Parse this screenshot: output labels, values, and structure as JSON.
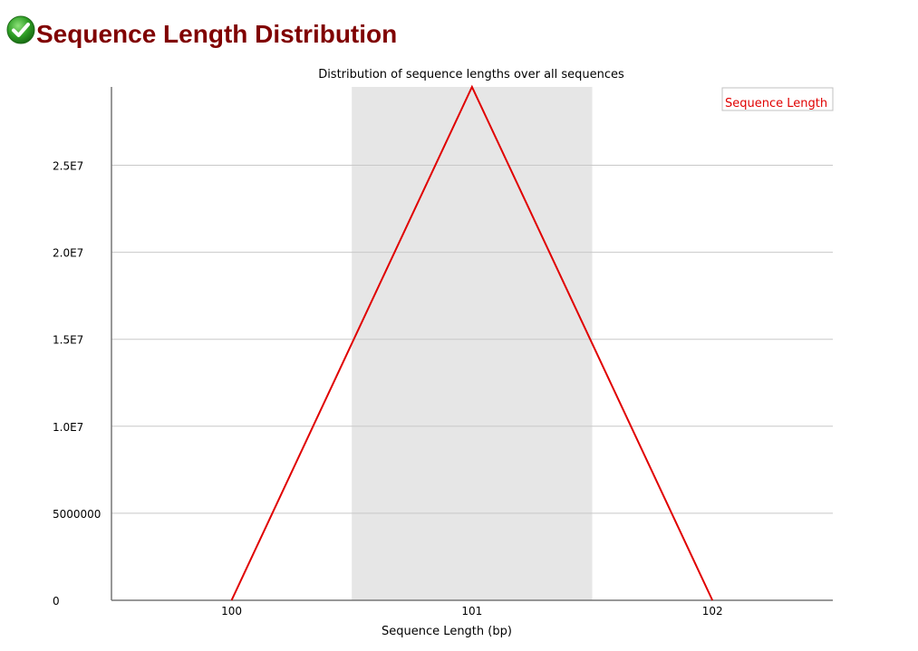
{
  "page": {
    "title": "Sequence Length Distribution",
    "status_icon": "pass-check-icon"
  },
  "colors": {
    "title": "#800000",
    "series": "#e00000",
    "highlight_band": "#e6e6e6",
    "grid": "#c8c8c8",
    "axis": "#777777"
  },
  "chart_data": {
    "type": "line",
    "title": "Distribution of sequence lengths over all sequences",
    "xlabel": "Sequence Length (bp)",
    "ylabel": "",
    "categories": [
      "100",
      "101",
      "102"
    ],
    "series": [
      {
        "name": "Sequence Length",
        "values": [
          0,
          29500000,
          0
        ]
      }
    ],
    "ylim": [
      0,
      29500000
    ],
    "yticks": [
      0,
      5000000,
      10000000,
      15000000,
      20000000,
      25000000
    ],
    "ytick_labels": [
      "0",
      "5000000",
      "1.0E7",
      "1.5E7",
      "2.0E7",
      "2.5E7"
    ],
    "highlight_band_category": "101",
    "grid": true,
    "legend_position": "top-right"
  }
}
